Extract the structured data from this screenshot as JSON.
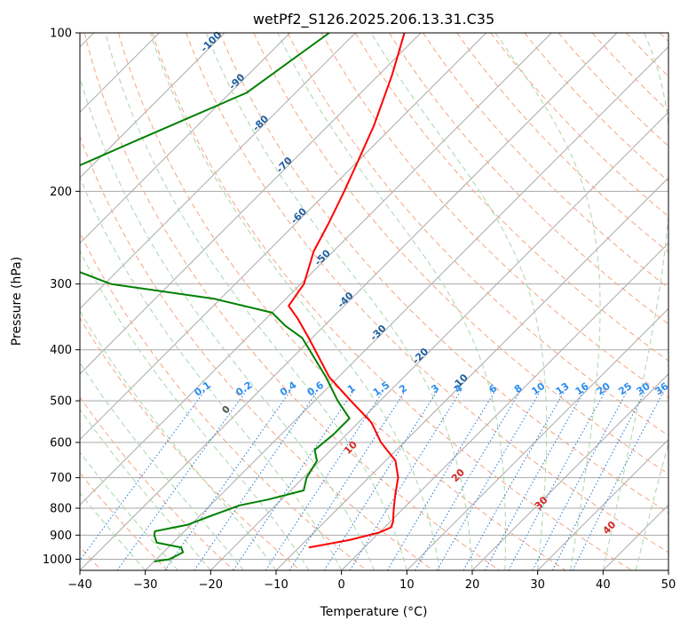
{
  "chart_data": {
    "type": "line",
    "title": "wetPf2_S126.2025.206.13.31.C35",
    "xlabel": "Temperature (°C)",
    "ylabel": "Pressure (hPa)",
    "xlim": [
      -40,
      50
    ],
    "ylim": [
      1050,
      100
    ],
    "y_scale": "log",
    "skew": true,
    "grid": true,
    "x_ticks": [
      -40,
      -30,
      -20,
      -10,
      0,
      10,
      20,
      30,
      40,
      50
    ],
    "y_ticks": [
      100,
      200,
      300,
      400,
      500,
      600,
      700,
      800,
      900,
      1000
    ],
    "series": [
      {
        "role": "temperature",
        "color": "#ff0000",
        "points": [
          {
            "p": 100,
            "t": -72.5
          },
          {
            "p": 120,
            "t": -68.0
          },
          {
            "p": 150,
            "t": -63.0
          },
          {
            "p": 180,
            "t": -59.5
          },
          {
            "p": 200,
            "t": -57.5
          },
          {
            "p": 230,
            "t": -55.0
          },
          {
            "p": 260,
            "t": -53.0
          },
          {
            "p": 300,
            "t": -49.5
          },
          {
            "p": 330,
            "t": -48.5
          },
          {
            "p": 350,
            "t": -45.0
          },
          {
            "p": 380,
            "t": -40.5
          },
          {
            "p": 450,
            "t": -31.5
          },
          {
            "p": 500,
            "t": -24.5
          },
          {
            "p": 550,
            "t": -18.0
          },
          {
            "p": 600,
            "t": -13.5
          },
          {
            "p": 650,
            "t": -8.5
          },
          {
            "p": 700,
            "t": -5.5
          },
          {
            "p": 750,
            "t": -3.5
          },
          {
            "p": 800,
            "t": -1.5
          },
          {
            "p": 850,
            "t": 0.5
          },
          {
            "p": 870,
            "t": 1.0
          },
          {
            "p": 890,
            "t": 0.0
          },
          {
            "p": 920,
            "t": -3.5
          },
          {
            "p": 950,
            "t": -8.5
          }
        ]
      },
      {
        "role": "dewpoint",
        "color": "#008000",
        "points": [
          {
            "p": 100,
            "t": -84.0
          },
          {
            "p": 130,
            "t": -87.5
          },
          {
            "p": 160,
            "t": -97.0
          },
          {
            "p": 185,
            "t": -103.5
          },
          {
            "p": 195,
            "t": -106.5
          },
          {
            "p": 230,
            "t": -106.0
          },
          {
            "p": 265,
            "t": -95.0
          },
          {
            "p": 285,
            "t": -85.5
          },
          {
            "p": 300,
            "t": -79.0
          },
          {
            "p": 320,
            "t": -61.0
          },
          {
            "p": 340,
            "t": -50.0
          },
          {
            "p": 360,
            "t": -46.0
          },
          {
            "p": 380,
            "t": -41.5
          },
          {
            "p": 450,
            "t": -32.0
          },
          {
            "p": 500,
            "t": -26.5
          },
          {
            "p": 540,
            "t": -22.0
          },
          {
            "p": 580,
            "t": -22.0
          },
          {
            "p": 620,
            "t": -22.5
          },
          {
            "p": 650,
            "t": -20.5
          },
          {
            "p": 700,
            "t": -19.5
          },
          {
            "p": 740,
            "t": -18.0
          },
          {
            "p": 770,
            "t": -22.0
          },
          {
            "p": 790,
            "t": -25.5
          },
          {
            "p": 830,
            "t": -28.5
          },
          {
            "p": 860,
            "t": -30.5
          },
          {
            "p": 885,
            "t": -34.5
          },
          {
            "p": 900,
            "t": -34.0
          },
          {
            "p": 930,
            "t": -32.5
          },
          {
            "p": 950,
            "t": -28.0
          },
          {
            "p": 970,
            "t": -27.0
          },
          {
            "p": 1000,
            "t": -28.0
          },
          {
            "p": 1010,
            "t": -30.0
          }
        ]
      }
    ],
    "dry_adiabat_labels": [
      "-100",
      "-90",
      "-80",
      "-70",
      "-60",
      "-50",
      "-40",
      "-30",
      "-20",
      "-10"
    ],
    "moist_adiabat_labels": [
      "0",
      "10",
      "20",
      "30",
      "40"
    ],
    "mixing_ratio_labels": [
      "0.1",
      "0.2",
      "0.4",
      "0.6",
      "1",
      "1.5",
      "2",
      "3",
      "4",
      "6",
      "8",
      "10",
      "13",
      "16",
      "20",
      "25",
      "30",
      "36"
    ],
    "colors": {
      "temperature": "#ff0000",
      "dewpoint": "#008000",
      "isotherm_grid": "#aaaaaa",
      "dry_adiabat": "#f4a582",
      "moist_adiabat": "#a6d8a6",
      "mixing_ratio": "#1f77d4",
      "dry_label": "#1f5f9f",
      "moist_label": "#d62728",
      "mixing_label": "#2b8cee"
    }
  }
}
